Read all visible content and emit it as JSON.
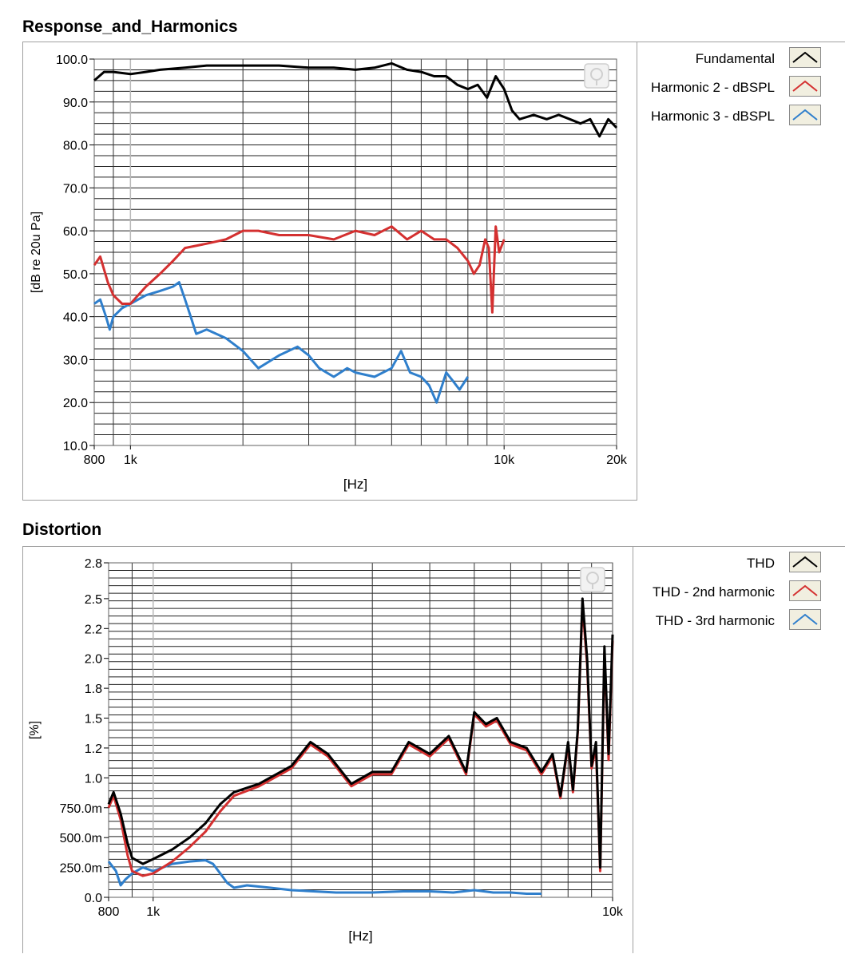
{
  "panels": [
    {
      "title": "Response_and_Harmonics",
      "legend": [
        {
          "label": "Fundamental",
          "color": "#000000"
        },
        {
          "label": "Harmonic 2 - dBSPL",
          "color": "#d43030"
        },
        {
          "label": "Harmonic 3 - dBSPL",
          "color": "#2f7fcc"
        }
      ]
    },
    {
      "title": "Distortion",
      "legend": [
        {
          "label": "THD",
          "color": "#000000"
        },
        {
          "label": "THD - 2nd harmonic",
          "color": "#d43030"
        },
        {
          "label": "THD - 3rd harmonic",
          "color": "#2f7fcc"
        }
      ]
    }
  ],
  "chart_data": [
    {
      "type": "line",
      "title": "Response_and_Harmonics",
      "xlabel": "[Hz]",
      "ylabel": "[dB re 20u Pa]",
      "xscale": "log",
      "xlim": [
        800,
        20000
      ],
      "ylim": [
        10,
        100
      ],
      "xticks": [
        800,
        1000,
        10000,
        20000
      ],
      "xtick_labels": [
        "800",
        "1k",
        "10k",
        "20k"
      ],
      "yticks": [
        10,
        20,
        30,
        40,
        50,
        60,
        70,
        80,
        90,
        100
      ],
      "ytick_labels": [
        "10.0",
        "20.0",
        "30.0",
        "40.0",
        "50.0",
        "60.0",
        "70.0",
        "80.0",
        "90.0",
        "100.0"
      ],
      "grid": true,
      "legend_position": "right",
      "series": [
        {
          "name": "Fundamental",
          "color": "#000000",
          "x": [
            800,
            850,
            900,
            1000,
            1100,
            1200,
            1400,
            1600,
            2000,
            2500,
            3000,
            3500,
            4000,
            4500,
            5000,
            5500,
            6000,
            6500,
            7000,
            7500,
            8000,
            8500,
            9000,
            9500,
            10000,
            10500,
            11000,
            12000,
            13000,
            14000,
            15000,
            16000,
            17000,
            18000,
            19000,
            20000
          ],
          "y": [
            95,
            97,
            97,
            96.5,
            97,
            97.5,
            98,
            98.5,
            98.5,
            98.5,
            98,
            98,
            97.5,
            98,
            99,
            97.5,
            97,
            96,
            96,
            94,
            93,
            94,
            91,
            96,
            93,
            88,
            86,
            87,
            86,
            87,
            86,
            85,
            86,
            82,
            86,
            84
          ]
        },
        {
          "name": "Harmonic 2 - dBSPL",
          "color": "#d43030",
          "x": [
            800,
            830,
            870,
            900,
            950,
            1000,
            1100,
            1200,
            1300,
            1400,
            1600,
            1800,
            2000,
            2200,
            2500,
            3000,
            3500,
            4000,
            4500,
            5000,
            5500,
            6000,
            6500,
            7000,
            7500,
            8000,
            8300,
            8600,
            8900,
            9100,
            9300,
            9500,
            9700,
            10000
          ],
          "y": [
            52,
            54,
            48,
            45,
            43,
            43,
            47,
            50,
            53,
            56,
            57,
            58,
            60,
            60,
            59,
            59,
            58,
            60,
            59,
            61,
            58,
            60,
            58,
            58,
            56,
            53,
            50,
            52,
            58,
            56,
            41,
            61,
            55,
            58
          ]
        },
        {
          "name": "Harmonic 3 - dBSPL",
          "color": "#2f7fcc",
          "x": [
            800,
            830,
            860,
            880,
            900,
            950,
            1000,
            1100,
            1200,
            1300,
            1350,
            1400,
            1450,
            1500,
            1600,
            1800,
            2000,
            2200,
            2500,
            2800,
            3000,
            3200,
            3500,
            3800,
            4000,
            4500,
            5000,
            5300,
            5600,
            6000,
            6300,
            6600,
            7000,
            7300,
            7600,
            8000
          ],
          "y": [
            43,
            44,
            40,
            37,
            40,
            42,
            43,
            45,
            46,
            47,
            48,
            44,
            40,
            36,
            37,
            35,
            32,
            28,
            31,
            33,
            31,
            28,
            26,
            28,
            27,
            26,
            28,
            32,
            27,
            26,
            24,
            20,
            27,
            25,
            23,
            26
          ]
        }
      ]
    },
    {
      "type": "line",
      "title": "Distortion",
      "xlabel": "[Hz]",
      "ylabel": "[%]",
      "xscale": "log",
      "xlim": [
        800,
        10000
      ],
      "ylim": [
        0,
        2.8
      ],
      "xticks": [
        800,
        1000,
        10000
      ],
      "xtick_labels": [
        "800",
        "1k",
        "10k"
      ],
      "yticks": [
        0,
        0.25,
        0.5,
        0.75,
        1.0,
        1.25,
        1.5,
        1.75,
        2.0,
        2.25,
        2.5,
        2.8
      ],
      "ytick_labels": [
        "0.0",
        "250.0m",
        "500.0m",
        "750.0m",
        "1.0",
        "1.2",
        "1.5",
        "1.8",
        "2.0",
        "2.2",
        "2.5",
        "2.8"
      ],
      "grid": true,
      "legend_position": "right",
      "series": [
        {
          "name": "THD",
          "color": "#000000",
          "x": [
            800,
            820,
            850,
            880,
            900,
            950,
            1000,
            1100,
            1200,
            1300,
            1400,
            1500,
            1700,
            2000,
            2200,
            2400,
            2700,
            3000,
            3300,
            3600,
            4000,
            4400,
            4800,
            5000,
            5300,
            5600,
            6000,
            6500,
            7000,
            7400,
            7700,
            8000,
            8200,
            8400,
            8600,
            8800,
            9000,
            9200,
            9400,
            9600,
            9800,
            10000
          ],
          "y": [
            0.78,
            0.88,
            0.7,
            0.45,
            0.33,
            0.28,
            0.32,
            0.4,
            0.5,
            0.62,
            0.78,
            0.88,
            0.95,
            1.1,
            1.3,
            1.2,
            0.95,
            1.05,
            1.05,
            1.3,
            1.2,
            1.35,
            1.05,
            1.55,
            1.45,
            1.5,
            1.3,
            1.25,
            1.05,
            1.2,
            0.85,
            1.3,
            0.9,
            1.4,
            2.5,
            2.0,
            1.1,
            1.3,
            0.25,
            2.1,
            1.2,
            2.2
          ]
        },
        {
          "name": "THD - 2nd harmonic",
          "color": "#d43030",
          "x": [
            800,
            820,
            850,
            880,
            900,
            950,
            1000,
            1100,
            1200,
            1300,
            1400,
            1500,
            1700,
            2000,
            2200,
            2400,
            2700,
            3000,
            3300,
            3600,
            4000,
            4400,
            4800,
            5000,
            5300,
            5600,
            6000,
            6500,
            7000,
            7400,
            7700,
            8000,
            8200,
            8400,
            8600,
            8800,
            9000,
            9200,
            9400,
            9600,
            9800,
            10000
          ],
          "y": [
            0.75,
            0.85,
            0.65,
            0.35,
            0.22,
            0.18,
            0.2,
            0.3,
            0.42,
            0.55,
            0.72,
            0.85,
            0.93,
            1.08,
            1.28,
            1.18,
            0.93,
            1.03,
            1.03,
            1.28,
            1.18,
            1.33,
            1.03,
            1.53,
            1.43,
            1.48,
            1.28,
            1.23,
            1.03,
            1.18,
            0.83,
            1.28,
            0.88,
            1.38,
            2.45,
            1.95,
            1.08,
            1.25,
            0.22,
            2.05,
            1.15,
            2.15
          ]
        },
        {
          "name": "THD - 3rd harmonic",
          "color": "#2f7fcc",
          "x": [
            800,
            830,
            850,
            870,
            900,
            950,
            1000,
            1050,
            1100,
            1200,
            1300,
            1350,
            1400,
            1450,
            1500,
            1600,
            1800,
            2000,
            2500,
            3000,
            3500,
            4000,
            4500,
            5000,
            5500,
            6000,
            6500,
            7000
          ],
          "y": [
            0.3,
            0.22,
            0.1,
            0.15,
            0.2,
            0.25,
            0.22,
            0.25,
            0.28,
            0.3,
            0.31,
            0.28,
            0.2,
            0.12,
            0.08,
            0.1,
            0.08,
            0.06,
            0.04,
            0.04,
            0.05,
            0.05,
            0.04,
            0.06,
            0.04,
            0.04,
            0.03,
            0.03
          ]
        }
      ]
    }
  ]
}
